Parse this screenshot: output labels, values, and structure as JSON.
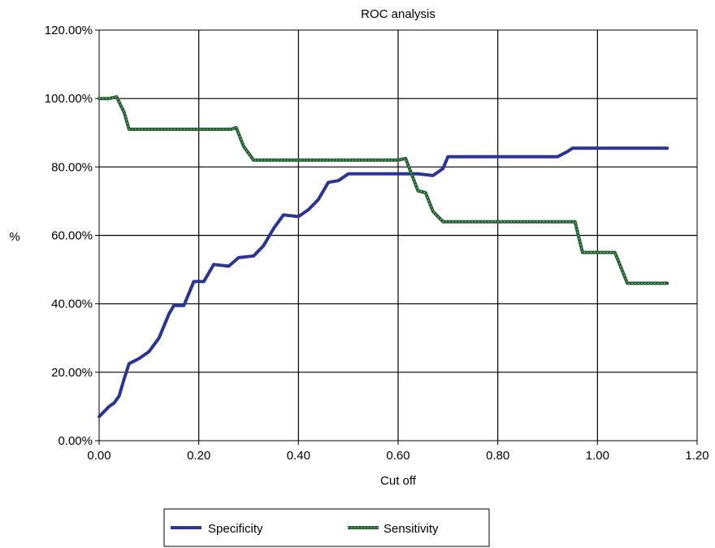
{
  "chart_data": {
    "type": "line",
    "title": "ROC analysis",
    "xlabel": "Cut off",
    "ylabel": "%",
    "xlim": [
      0,
      1.2
    ],
    "ylim": [
      0,
      120
    ],
    "x_ticks": [
      "0.00",
      "0.20",
      "0.40",
      "0.60",
      "0.80",
      "1.00",
      "1.20"
    ],
    "y_ticks": [
      "0.00%",
      "20.00%",
      "40.00%",
      "60.00%",
      "80.00%",
      "100.00%",
      "120.00%"
    ],
    "grid": true,
    "legend_position": "bottom",
    "series": [
      {
        "name": "Specificity",
        "color": "#2b3592",
        "style": "solid",
        "points": [
          [
            0.0,
            7
          ],
          [
            0.01,
            8.5
          ],
          [
            0.02,
            10
          ],
          [
            0.03,
            11
          ],
          [
            0.04,
            13
          ],
          [
            0.05,
            18
          ],
          [
            0.06,
            22.5
          ],
          [
            0.08,
            24
          ],
          [
            0.1,
            26
          ],
          [
            0.12,
            30
          ],
          [
            0.14,
            37
          ],
          [
            0.15,
            39.5
          ],
          [
            0.17,
            39.5
          ],
          [
            0.19,
            46.5
          ],
          [
            0.21,
            46.5
          ],
          [
            0.23,
            51.5
          ],
          [
            0.26,
            51
          ],
          [
            0.28,
            53.5
          ],
          [
            0.31,
            54
          ],
          [
            0.33,
            57
          ],
          [
            0.35,
            62
          ],
          [
            0.37,
            66
          ],
          [
            0.4,
            65.5
          ],
          [
            0.42,
            67.5
          ],
          [
            0.44,
            70.5
          ],
          [
            0.46,
            75.5
          ],
          [
            0.48,
            76
          ],
          [
            0.5,
            78
          ],
          [
            0.55,
            78
          ],
          [
            0.6,
            78
          ],
          [
            0.64,
            78
          ],
          [
            0.67,
            77.5
          ],
          [
            0.69,
            79.5
          ],
          [
            0.7,
            83
          ],
          [
            0.75,
            83
          ],
          [
            0.8,
            83
          ],
          [
            0.86,
            83
          ],
          [
            0.92,
            83
          ],
          [
            0.94,
            84.5
          ],
          [
            0.95,
            85.5
          ],
          [
            1.0,
            85.5
          ],
          [
            1.06,
            85.5
          ],
          [
            1.14,
            85.5
          ]
        ]
      },
      {
        "name": "Sensitivity",
        "color": "#1f5c2e",
        "style": "dotted",
        "points": [
          [
            0.0,
            100
          ],
          [
            0.02,
            100
          ],
          [
            0.035,
            100.5
          ],
          [
            0.05,
            96
          ],
          [
            0.06,
            91
          ],
          [
            0.08,
            91
          ],
          [
            0.15,
            91
          ],
          [
            0.22,
            91
          ],
          [
            0.265,
            91
          ],
          [
            0.275,
            91.5
          ],
          [
            0.29,
            86
          ],
          [
            0.31,
            82
          ],
          [
            0.4,
            82
          ],
          [
            0.5,
            82
          ],
          [
            0.6,
            82
          ],
          [
            0.615,
            82.5
          ],
          [
            0.64,
            73
          ],
          [
            0.655,
            72.5
          ],
          [
            0.67,
            67
          ],
          [
            0.69,
            64
          ],
          [
            0.75,
            64
          ],
          [
            0.85,
            64
          ],
          [
            0.94,
            64
          ],
          [
            0.955,
            64
          ],
          [
            0.97,
            55
          ],
          [
            1.0,
            55
          ],
          [
            1.035,
            55
          ],
          [
            1.06,
            46
          ],
          [
            1.08,
            46
          ],
          [
            1.14,
            46
          ]
        ]
      }
    ]
  }
}
